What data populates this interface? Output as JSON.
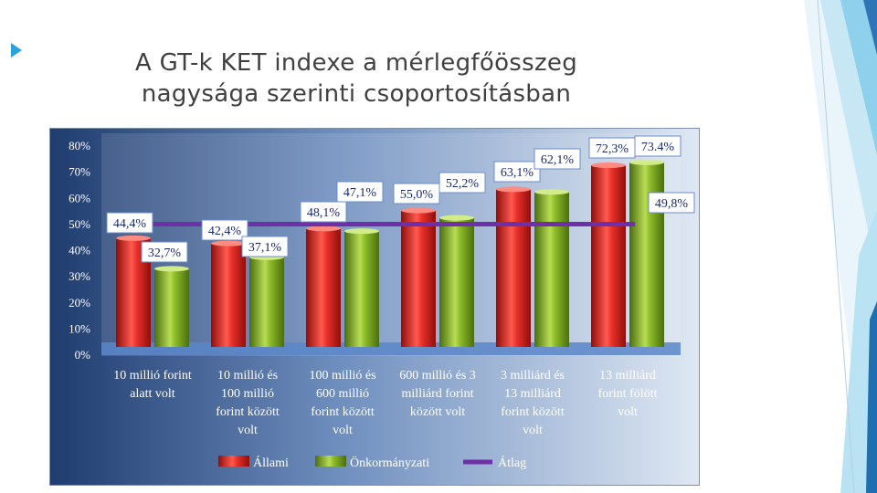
{
  "slide": {
    "title_line1": "A GT-k KET indexe a mérlegfőösszeg",
    "title_line2": "nagysága szerinti csoportosításban"
  },
  "colors": {
    "allami": "#d9201a",
    "onkormanyzati": "#7fae1e",
    "atlag": "#6f2fa6",
    "background_dark": "#1f3c6e",
    "background_light": "#dfe8f3",
    "floor": "#5b86c9"
  },
  "chart_data": {
    "type": "bar",
    "title": "",
    "xlabel": "",
    "ylabel": "",
    "ylim": [
      0,
      80
    ],
    "y_ticks": [
      "0%",
      "10%",
      "20%",
      "30%",
      "40%",
      "50%",
      "60%",
      "70%",
      "80%"
    ],
    "grid": false,
    "legend_position": "bottom",
    "categories": [
      [
        "10 millió forint",
        "alatt volt"
      ],
      [
        "10 millió és",
        "100 millió",
        "forint között",
        "volt"
      ],
      [
        "100 millió és",
        "600 millió",
        "forint között",
        "volt"
      ],
      [
        "600 millió és 3",
        "milliárd forint",
        "között volt"
      ],
      [
        "3 milliárd és",
        "13 milliárd",
        "forint között",
        "volt"
      ],
      [
        "13 milliárd",
        "forint fölött",
        "volt"
      ]
    ],
    "series": [
      {
        "name": "Állami",
        "kind": "bar",
        "values": [
          44.4,
          42.4,
          48.1,
          55.0,
          63.1,
          72.3
        ],
        "labels": [
          "44,4%",
          "42,4%",
          "48,1%",
          "55,0%",
          "63,1%",
          "72,3%"
        ]
      },
      {
        "name": "Önkormányzati",
        "kind": "bar",
        "values": [
          32.7,
          37.1,
          47.1,
          52.2,
          62.1,
          73.4
        ],
        "labels": [
          "32,7%",
          "37,1%",
          "47,1%",
          "52,2%",
          "62,1%",
          "73.4%"
        ]
      },
      {
        "name": "Átlag",
        "kind": "line",
        "values": [
          49.8,
          49.8,
          49.8,
          49.8,
          49.8,
          49.8
        ],
        "labels": [
          "49,8%"
        ]
      }
    ]
  }
}
